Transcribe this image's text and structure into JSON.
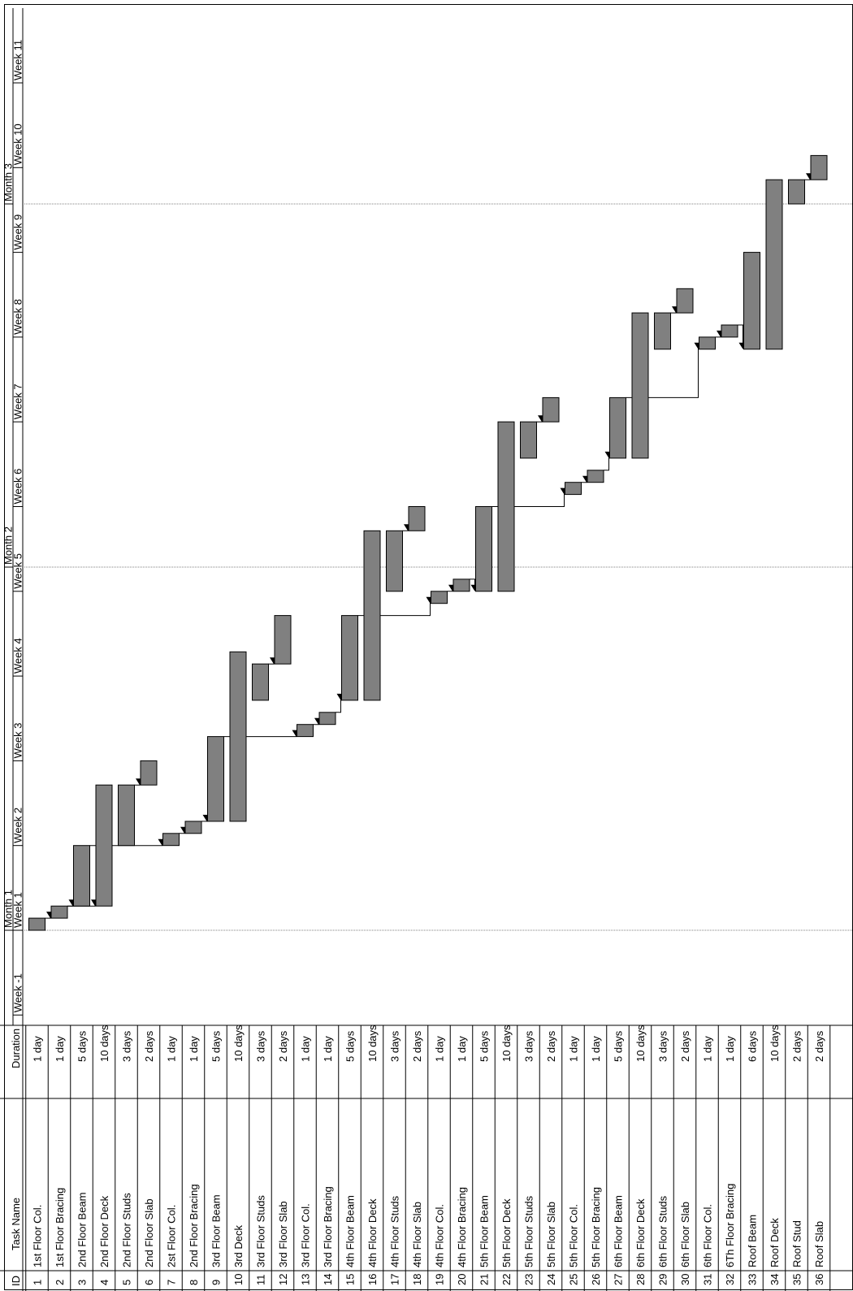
{
  "columns": {
    "id": "ID",
    "task_name": "Task Name",
    "duration": "Duration"
  },
  "chart_data": {
    "type": "gantt",
    "time_unit": "day",
    "months": [
      {
        "label": "Month 1",
        "start_day": 0
      },
      {
        "label": "Month 2",
        "start_day": 30
      },
      {
        "label": "Month 3",
        "start_day": 60
      }
    ],
    "weeks": [
      {
        "label": "Week -1",
        "start_day": -7
      },
      {
        "label": "Week 1",
        "start_day": 0
      },
      {
        "label": "Week 2",
        "start_day": 7
      },
      {
        "label": "Week 3",
        "start_day": 14
      },
      {
        "label": "Week 4",
        "start_day": 21
      },
      {
        "label": "Week 5",
        "start_day": 28
      },
      {
        "label": "Week 6",
        "start_day": 35
      },
      {
        "label": "Week 7",
        "start_day": 42
      },
      {
        "label": "Week 8",
        "start_day": 49
      },
      {
        "label": "Week 9",
        "start_day": 56
      },
      {
        "label": "Week 10",
        "start_day": 63
      },
      {
        "label": "Week 11",
        "start_day": 70
      }
    ],
    "tasks": [
      {
        "id": "1",
        "name": "1st Floor Col.",
        "duration": "1 day",
        "start": 0,
        "days": 1,
        "pred": []
      },
      {
        "id": "2",
        "name": "1st Floor Bracing",
        "duration": "1 day",
        "start": 1,
        "days": 1,
        "pred": [
          1
        ]
      },
      {
        "id": "3",
        "name": "2nd Floor Beam",
        "duration": "5 days",
        "start": 2,
        "days": 5,
        "pred": [
          2
        ]
      },
      {
        "id": "4",
        "name": "2nd Floor Deck",
        "duration": "10 days",
        "start": 2,
        "days": 10,
        "pred": [
          2
        ]
      },
      {
        "id": "5",
        "name": "2nd Floor Studs",
        "duration": "3 days",
        "start": 7,
        "days": 5,
        "pred": []
      },
      {
        "id": "6",
        "name": "2nd Floor Slab",
        "duration": "2 days",
        "start": 12,
        "days": 2,
        "pred": [
          5
        ]
      },
      {
        "id": "7",
        "name": "2st Floor Col.",
        "duration": "1 day",
        "start": 7,
        "days": 1,
        "pred": [
          3
        ]
      },
      {
        "id": "8",
        "name": "2nd Floor Bracing",
        "duration": "1 day",
        "start": 8,
        "days": 1,
        "pred": [
          7
        ]
      },
      {
        "id": "9",
        "name": "3rd Floor Beam",
        "duration": "5 days",
        "start": 9,
        "days": 7,
        "pred": [
          8
        ]
      },
      {
        "id": "10",
        "name": "3rd Deck",
        "duration": "10 days",
        "start": 9,
        "days": 14,
        "pred": []
      },
      {
        "id": "11",
        "name": "3rd Floor Studs",
        "duration": "3 days",
        "start": 19,
        "days": 3,
        "pred": []
      },
      {
        "id": "12",
        "name": "3rd Floor Slab",
        "duration": "2 days",
        "start": 22,
        "days": 4,
        "pred": [
          11
        ]
      },
      {
        "id": "13",
        "name": "3rd Floor Col.",
        "duration": "1 day",
        "start": 16,
        "days": 1,
        "pred": [
          9
        ]
      },
      {
        "id": "14",
        "name": "3rd Floor Bracing",
        "duration": "1 day",
        "start": 17,
        "days": 1,
        "pred": [
          13
        ]
      },
      {
        "id": "15",
        "name": "4th Floor Beam",
        "duration": "5 days",
        "start": 19,
        "days": 7,
        "pred": [
          14
        ]
      },
      {
        "id": "16",
        "name": "4th Floor Deck",
        "duration": "10 days",
        "start": 19,
        "days": 14,
        "pred": []
      },
      {
        "id": "17",
        "name": "4th Floor Studs",
        "duration": "3 days",
        "start": 28,
        "days": 5,
        "pred": []
      },
      {
        "id": "18",
        "name": "4th Floor Slab",
        "duration": "2 days",
        "start": 33,
        "days": 2,
        "pred": [
          17
        ]
      },
      {
        "id": "19",
        "name": "4th Floor Col.",
        "duration": "1 day",
        "start": 27,
        "days": 1,
        "pred": [
          15
        ]
      },
      {
        "id": "20",
        "name": "4th Floor Bracing",
        "duration": "1 day",
        "start": 28,
        "days": 1,
        "pred": [
          19
        ]
      },
      {
        "id": "21",
        "name": "5th Floor Beam",
        "duration": "5 days",
        "start": 28,
        "days": 7,
        "pred": [
          20
        ]
      },
      {
        "id": "22",
        "name": "5th Floor Deck",
        "duration": "10 days",
        "start": 28,
        "days": 14,
        "pred": []
      },
      {
        "id": "23",
        "name": "5th Floor Studs",
        "duration": "3 days",
        "start": 39,
        "days": 3,
        "pred": []
      },
      {
        "id": "24",
        "name": "5th Floor Slab",
        "duration": "2 days",
        "start": 42,
        "days": 2,
        "pred": [
          23
        ]
      },
      {
        "id": "25",
        "name": "5th Floor Col.",
        "duration": "1 day",
        "start": 36,
        "days": 1,
        "pred": [
          21
        ]
      },
      {
        "id": "26",
        "name": "5th Floor Bracing",
        "duration": "1 day",
        "start": 37,
        "days": 1,
        "pred": [
          25
        ]
      },
      {
        "id": "27",
        "name": "6th Floor Beam",
        "duration": "5 days",
        "start": 39,
        "days": 5,
        "pred": [
          26
        ]
      },
      {
        "id": "28",
        "name": "6th Floor Deck",
        "duration": "10 days",
        "start": 39,
        "days": 12,
        "pred": []
      },
      {
        "id": "29",
        "name": "6th Floor Studs",
        "duration": "3 days",
        "start": 48,
        "days": 3,
        "pred": []
      },
      {
        "id": "30",
        "name": "6th Floor Slab",
        "duration": "2 days",
        "start": 51,
        "days": 2,
        "pred": [
          29
        ]
      },
      {
        "id": "31",
        "name": "6th Floor Col.",
        "duration": "1 day",
        "start": 48,
        "days": 1,
        "pred": [
          27
        ]
      },
      {
        "id": "32",
        "name": "6Th Floor Bracing",
        "duration": "1 day",
        "start": 49,
        "days": 1,
        "pred": [
          31
        ]
      },
      {
        "id": "33",
        "name": "Roof Beam",
        "duration": "6 days",
        "start": 48,
        "days": 8,
        "pred": [
          32
        ]
      },
      {
        "id": "34",
        "name": "Roof Deck",
        "duration": "10 days",
        "start": 48,
        "days": 14,
        "pred": []
      },
      {
        "id": "35",
        "name": "Roof Stud",
        "duration": "2 days",
        "start": 60,
        "days": 2,
        "pred": []
      },
      {
        "id": "36",
        "name": "Roof Slab",
        "duration": "2 days",
        "start": 62,
        "days": 2,
        "pred": [
          35
        ]
      }
    ],
    "bar_color": "#808080",
    "line_color": "#000000",
    "gridline_color": "#808080"
  }
}
